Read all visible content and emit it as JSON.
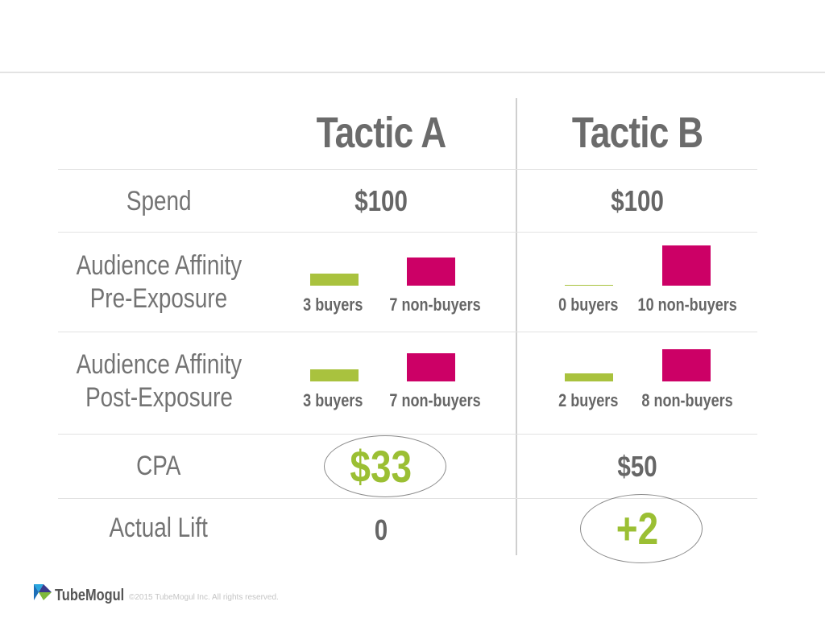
{
  "columns": {
    "tactic_a": "Tactic A",
    "tactic_b": "Tactic B"
  },
  "rows": {
    "spend": {
      "label": "Spend",
      "a": "$100",
      "b": "$100"
    },
    "pre_exposure": {
      "label_line1": "Audience Affinity",
      "label_line2": "Pre-Exposure",
      "a": {
        "buyers_label": "3 buyers",
        "nonbuyers_label": "7 non-buyers",
        "buyers": 3,
        "nonbuyers": 7
      },
      "b": {
        "buyers_label": "0 buyers",
        "nonbuyers_label": "10 non-buyers",
        "buyers": 0,
        "nonbuyers": 10
      }
    },
    "post_exposure": {
      "label_line1": "Audience Affinity",
      "label_line2": "Post-Exposure",
      "a": {
        "buyers_label": "3 buyers",
        "nonbuyers_label": "7 non-buyers",
        "buyers": 3,
        "nonbuyers": 7
      },
      "b": {
        "buyers_label": "2 buyers",
        "nonbuyers_label": "8 non-buyers",
        "buyers": 2,
        "nonbuyers": 8
      }
    },
    "cpa": {
      "label": "CPA",
      "a": "$33",
      "b": "$50"
    },
    "lift": {
      "label": "Actual Lift",
      "a": "0",
      "b": "+2"
    }
  },
  "colors": {
    "buyers": "#a9c23e",
    "nonbuyers": "#cc0066",
    "highlight": "#9bbf33"
  },
  "footer": {
    "brand": "TubeMogul",
    "copyright": "©2015 TubeMogul Inc. All rights reserved.",
    "logo_icon": "tubemogul-logo-icon"
  }
}
